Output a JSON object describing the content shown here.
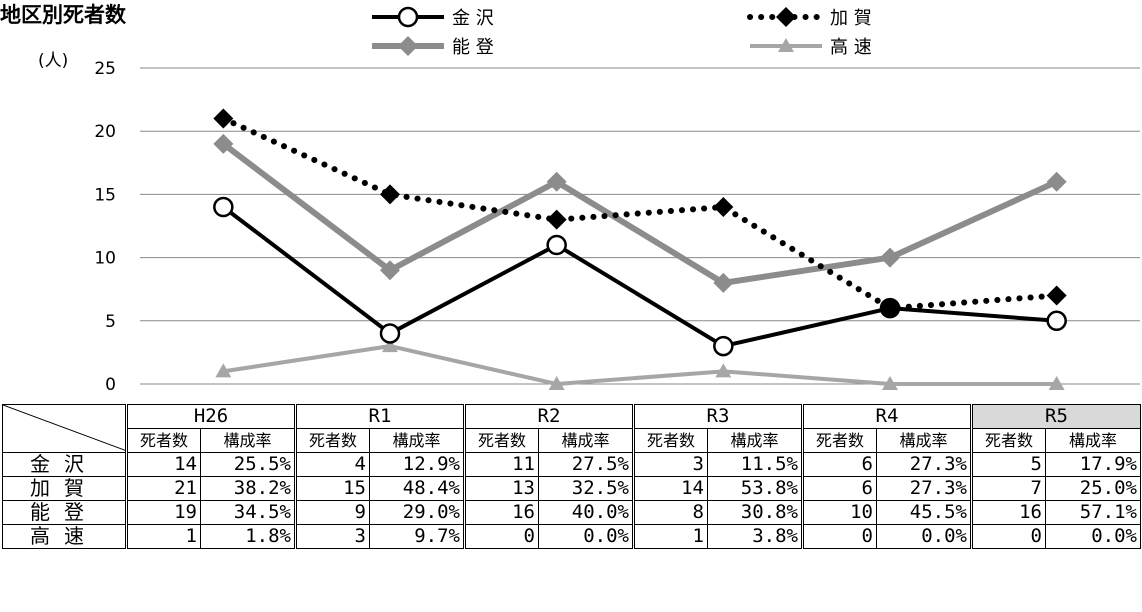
{
  "chart_data": {
    "type": "line",
    "title": "地区別死者数",
    "ylabel": "(人)",
    "categories": [
      "H26",
      "R1",
      "R2",
      "R3",
      "R4",
      "R5"
    ],
    "ylim": [
      0,
      25
    ],
    "yticks": [
      "0",
      "5",
      "10",
      "15",
      "20",
      "25"
    ],
    "grid": true,
    "legend": "top",
    "series": [
      {
        "name": "金 沢",
        "values": [
          14,
          4,
          11,
          3,
          6,
          5
        ],
        "color": "#000000",
        "style": "solid-open-circle"
      },
      {
        "name": "加 賀",
        "values": [
          21,
          15,
          13,
          14,
          6,
          7
        ],
        "color": "#000000",
        "style": "dotted-diamond"
      },
      {
        "name": "能 登",
        "values": [
          19,
          9,
          16,
          8,
          10,
          16
        ],
        "color": "#8c8c8c",
        "style": "solid-diamond"
      },
      {
        "name": "高 速",
        "values": [
          1,
          3,
          0,
          1,
          0,
          0
        ],
        "color": "#a6a6a6",
        "style": "solid-triangle"
      }
    ]
  },
  "table": {
    "years": [
      "H26",
      "R1",
      "R2",
      "R3",
      "R4",
      "R5"
    ],
    "highlight_year": "R5",
    "sub_headers": [
      "死者数",
      "構成率"
    ],
    "rows": [
      {
        "label": "金沢",
        "cells": [
          [
            "14",
            "25.5%"
          ],
          [
            "4",
            "12.9%"
          ],
          [
            "11",
            "27.5%"
          ],
          [
            "3",
            "11.5%"
          ],
          [
            "6",
            "27.3%"
          ],
          [
            "5",
            "17.9%"
          ]
        ]
      },
      {
        "label": "加賀",
        "cells": [
          [
            "21",
            "38.2%"
          ],
          [
            "15",
            "48.4%"
          ],
          [
            "13",
            "32.5%"
          ],
          [
            "14",
            "53.8%"
          ],
          [
            "6",
            "27.3%"
          ],
          [
            "7",
            "25.0%"
          ]
        ]
      },
      {
        "label": "能登",
        "cells": [
          [
            "19",
            "34.5%"
          ],
          [
            "9",
            "29.0%"
          ],
          [
            "16",
            "40.0%"
          ],
          [
            "8",
            "30.8%"
          ],
          [
            "10",
            "45.5%"
          ],
          [
            "16",
            "57.1%"
          ]
        ]
      },
      {
        "label": "高速",
        "cells": [
          [
            "1",
            "1.8%"
          ],
          [
            "3",
            "9.7%"
          ],
          [
            "0",
            "0.0%"
          ],
          [
            "1",
            "3.8%"
          ],
          [
            "0",
            "0.0%"
          ],
          [
            "0",
            "0.0%"
          ]
        ]
      }
    ]
  }
}
